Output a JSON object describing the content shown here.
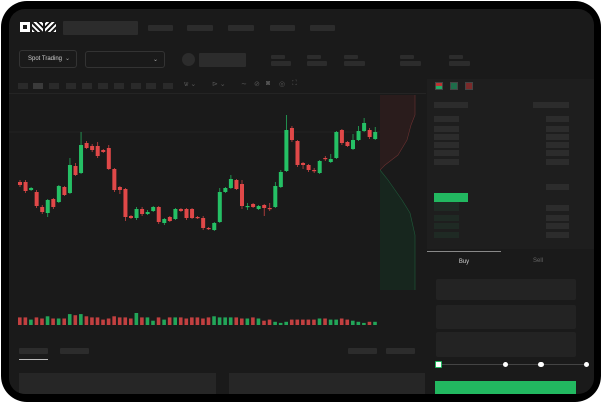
{
  "header": {
    "logo": "OKX"
  },
  "toolbar": {
    "market_type": "Spot Trading"
  },
  "trade_panel": {
    "tabs": [
      {
        "label": "Buy",
        "active": true
      },
      {
        "label": "Sell",
        "active": false
      }
    ],
    "slider_value_percent": 0
  },
  "colors": {
    "up": "#25c065",
    "down": "#e04848",
    "accent": "#22b860",
    "background": "#1a1a1a"
  },
  "icons": [
    "chevron-down-icon",
    "orderbook-both-icon",
    "orderbook-bids-icon",
    "orderbook-asks-icon",
    "indicator-icon",
    "draw-line-icon",
    "camera-icon",
    "settings-icon",
    "fullscreen-icon"
  ],
  "chart_data": {
    "type": "candlestick",
    "candles": [
      [
        68,
        65,
        70,
        63
      ],
      [
        68,
        59,
        70,
        57
      ],
      [
        60,
        62,
        63,
        59
      ],
      [
        58,
        44,
        60,
        42
      ],
      [
        43,
        38,
        45,
        36
      ],
      [
        37,
        50,
        51,
        33
      ],
      [
        51,
        43,
        52,
        41
      ],
      [
        48,
        64,
        65,
        47
      ],
      [
        63,
        55,
        64,
        54
      ],
      [
        57,
        85,
        92,
        56
      ],
      [
        84,
        75,
        87,
        74
      ],
      [
        77,
        105,
        118,
        76
      ],
      [
        107,
        102,
        109,
        101
      ],
      [
        104,
        100,
        106,
        98
      ],
      [
        104,
        94,
        108,
        92
      ],
      [
        100,
        98,
        101,
        97
      ],
      [
        102,
        81,
        105,
        80
      ],
      [
        81,
        60,
        82,
        58
      ],
      [
        63,
        60,
        64,
        56
      ],
      [
        61,
        33,
        62,
        29
      ],
      [
        34,
        32,
        35,
        31
      ],
      [
        32,
        41,
        43,
        30
      ],
      [
        41,
        36,
        43,
        34
      ],
      [
        36,
        38,
        40,
        35
      ],
      [
        39,
        43,
        44,
        38
      ],
      [
        43,
        28,
        44,
        26
      ],
      [
        27,
        31,
        32,
        25
      ],
      [
        33,
        29,
        34,
        28
      ],
      [
        31,
        41,
        42,
        30
      ],
      [
        41,
        39,
        42,
        38
      ],
      [
        41,
        32,
        42,
        30
      ],
      [
        41,
        32,
        42,
        31
      ],
      [
        33,
        32,
        34,
        31
      ],
      [
        32,
        22,
        34,
        20
      ],
      [
        22,
        21,
        23,
        20
      ],
      [
        20,
        27,
        28,
        19
      ],
      [
        28,
        58,
        62,
        27
      ],
      [
        58,
        62,
        63,
        57
      ],
      [
        62,
        71,
        75,
        61
      ],
      [
        70,
        61,
        71,
        60
      ],
      [
        66,
        44,
        70,
        41
      ],
      [
        43,
        44,
        47,
        40
      ],
      [
        46,
        43,
        47,
        42
      ],
      [
        41,
        44,
        45,
        40
      ],
      [
        45,
        42,
        46,
        34
      ],
      [
        42,
        41,
        47,
        39
      ],
      [
        43,
        64,
        68,
        42
      ],
      [
        63,
        78,
        80,
        62
      ],
      [
        79,
        120,
        135,
        78
      ],
      [
        122,
        110,
        124,
        108
      ],
      [
        109,
        85,
        110,
        83
      ],
      [
        87,
        85,
        88,
        81
      ],
      [
        85,
        80,
        86,
        78
      ],
      [
        80,
        79,
        82,
        77
      ],
      [
        77,
        89,
        90,
        76
      ],
      [
        92,
        91,
        94,
        89
      ],
      [
        88,
        91,
        96,
        87
      ],
      [
        92,
        118,
        119,
        91
      ],
      [
        120,
        107,
        121,
        105
      ],
      [
        108,
        104,
        109,
        103
      ],
      [
        101,
        110,
        116,
        100
      ],
      [
        110,
        119,
        124,
        109
      ],
      [
        119,
        127,
        132,
        118
      ],
      [
        120,
        113,
        122,
        111
      ],
      [
        111,
        118,
        123,
        110
      ]
    ],
    "volume": [
      6,
      6,
      4,
      6,
      5,
      7,
      5,
      5,
      5,
      9,
      8,
      9,
      7,
      6,
      6,
      4,
      5,
      7,
      6,
      6,
      5,
      10,
      6,
      6,
      3,
      6,
      4,
      6,
      6,
      6,
      5,
      6,
      6,
      5,
      6,
      7,
      6,
      6,
      6,
      6,
      5,
      5,
      6,
      5,
      3,
      4,
      2,
      1,
      2,
      4,
      4,
      4,
      4,
      4,
      5,
      5,
      4,
      4,
      5,
      4,
      3,
      2,
      1,
      2,
      2
    ]
  }
}
